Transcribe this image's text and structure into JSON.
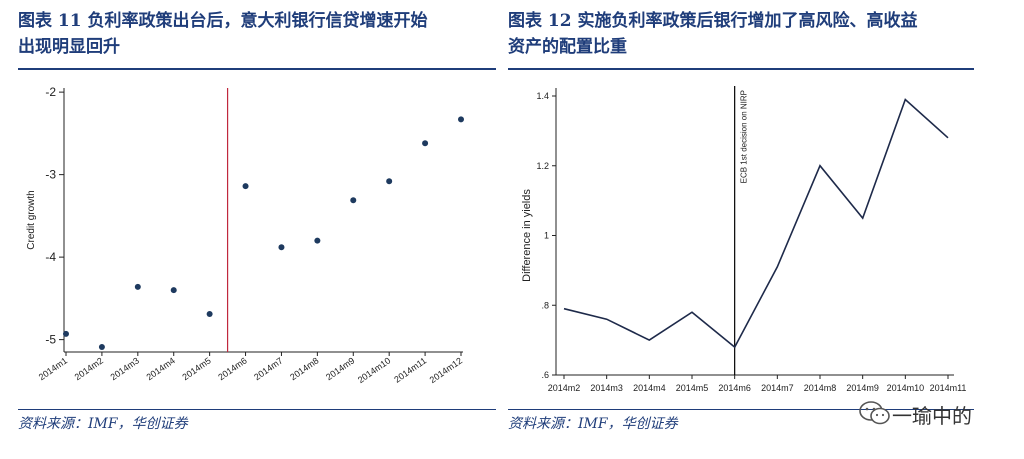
{
  "left": {
    "title_line1": "图表 11   负利率政策出台后，意大利银行信贷增速开始",
    "title_line2": "出现明显回升",
    "source": "资料来源：IMF，华创证券"
  },
  "right": {
    "title_line1": "图表 12   实施负利率政策后银行增加了高风险、高收益",
    "title_line2": "资产的配置比重",
    "source": "资料来源：IMF，华创证券"
  },
  "watermark": {
    "text": "一瑜中的"
  },
  "chart_data": [
    {
      "type": "scatter",
      "title": "",
      "ylabel": "Credit growth",
      "xlabel": "",
      "categories": [
        "2014m1",
        "2014m2",
        "2014m3",
        "2014m4",
        "2014m5",
        "2014m6",
        "2014m7",
        "2014m8",
        "2014m9",
        "2014m10",
        "2014m11",
        "2014m12"
      ],
      "values": [
        -4.93,
        -5.09,
        -4.36,
        -4.4,
        -4.69,
        -3.14,
        -3.88,
        -3.8,
        -3.31,
        -3.08,
        -2.62,
        -2.33
      ],
      "ylim": [
        -5.15,
        -1.95
      ],
      "yticks": [
        -2,
        -3,
        -4,
        -5
      ],
      "vline_after": "2014m5",
      "colors": {
        "points": "#1e3a5f",
        "vline": "#c0283d"
      },
      "grid": false
    },
    {
      "type": "line",
      "title": "",
      "ylabel": "Difference in yields",
      "xlabel": "",
      "categories": [
        "2014m2",
        "2014m3",
        "2014m4",
        "2014m5",
        "2014m6",
        "2014m7",
        "2014m8",
        "2014m9",
        "2014m10",
        "2014m11"
      ],
      "values": [
        0.79,
        0.76,
        0.7,
        0.78,
        0.68,
        0.91,
        1.2,
        1.05,
        1.39,
        1.28
      ],
      "ylim": [
        0.6,
        1.4
      ],
      "yticks": [
        1.4,
        1.2,
        1,
        0.8,
        0.6
      ],
      "ytick_labels": [
        "1.4",
        "1.2",
        "1",
        ".8",
        ".6"
      ],
      "vline_at": "2014m6",
      "annotation": "ECB 1st decision on NIRP",
      "colors": {
        "line": "#1e2a4a",
        "vline": "#000000"
      },
      "grid": false
    }
  ]
}
